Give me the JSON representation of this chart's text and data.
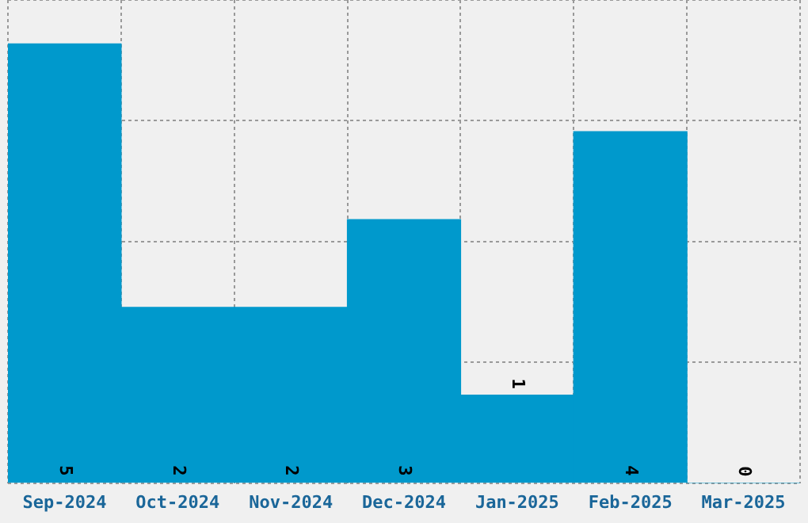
{
  "chart_data": {
    "type": "bar",
    "categories": [
      "Sep-2024",
      "Oct-2024",
      "Nov-2024",
      "Dec-2024",
      "Jan-2025",
      "Feb-2025",
      "Mar-2025"
    ],
    "values": [
      5,
      2,
      2,
      3,
      1,
      4,
      0
    ],
    "color": "#0099cc",
    "ylim": [
      0,
      5.5
    ],
    "yticks": [
      {
        "value": 0,
        "label": null
      },
      {
        "value": 1.375,
        "label": null
      },
      {
        "value": 2.75,
        "label": null
      },
      {
        "value": 4.125,
        "label": null
      },
      {
        "value": 5.5,
        "label": null
      }
    ],
    "tick_labels": "x",
    "grid": true,
    "legend": false,
    "data_labels": true
  }
}
